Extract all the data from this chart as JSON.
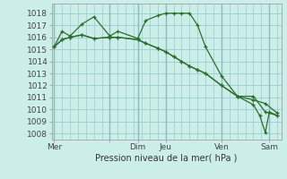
{
  "bg_color": "#cceee8",
  "grid_color": "#99cccc",
  "line_color": "#2d6e2d",
  "marker_color": "#2d6e2d",
  "title": "Pression niveau de la mer( hPa )",
  "ylim": [
    1007.5,
    1018.8
  ],
  "yticks": [
    1008,
    1009,
    1010,
    1011,
    1012,
    1013,
    1014,
    1015,
    1016,
    1017,
    1018
  ],
  "xlim": [
    -0.3,
    28.5
  ],
  "day_positions": [
    0,
    7,
    10.5,
    14,
    21,
    27
  ],
  "day_labels": [
    "Mer",
    "",
    "Dim",
    "Jeu",
    "Ven",
    "Sam"
  ],
  "series1_x": [
    0,
    1,
    2,
    3.5,
    5,
    7,
    8,
    10.5,
    11.5,
    13,
    14,
    15,
    16,
    17,
    18,
    19,
    21,
    23,
    25,
    26.5,
    28
  ],
  "series1_y": [
    1015.2,
    1016.5,
    1016.1,
    1017.1,
    1017.7,
    1016.1,
    1016.5,
    1015.9,
    1017.4,
    1017.8,
    1018.0,
    1018.0,
    1018.0,
    1018.0,
    1017.0,
    1015.2,
    1012.8,
    1011.1,
    1011.1,
    1009.8,
    1009.5
  ],
  "series2_x": [
    0,
    1,
    2,
    3.5,
    5,
    7,
    8,
    10.5,
    11.5,
    13,
    14,
    15,
    16,
    17,
    18,
    19,
    21,
    23,
    25,
    26.5,
    28
  ],
  "series2_y": [
    1015.2,
    1015.8,
    1016.0,
    1016.2,
    1015.9,
    1016.0,
    1016.0,
    1015.8,
    1015.5,
    1015.1,
    1014.8,
    1014.4,
    1014.0,
    1013.6,
    1013.3,
    1013.0,
    1012.0,
    1011.1,
    1010.8,
    1010.5,
    1009.7
  ],
  "series3_x": [
    0,
    1,
    2,
    3.5,
    5,
    7,
    8,
    10.5,
    11.5,
    13,
    14,
    15,
    16,
    17,
    18,
    19,
    21,
    23,
    25,
    25.8,
    26.5,
    27,
    28
  ],
  "series3_y": [
    1015.2,
    1015.8,
    1016.0,
    1016.2,
    1015.9,
    1016.0,
    1016.0,
    1015.8,
    1015.5,
    1015.1,
    1014.8,
    1014.4,
    1014.0,
    1013.6,
    1013.3,
    1013.0,
    1012.0,
    1011.1,
    1010.4,
    1009.5,
    1008.1,
    1009.8,
    1009.5
  ]
}
